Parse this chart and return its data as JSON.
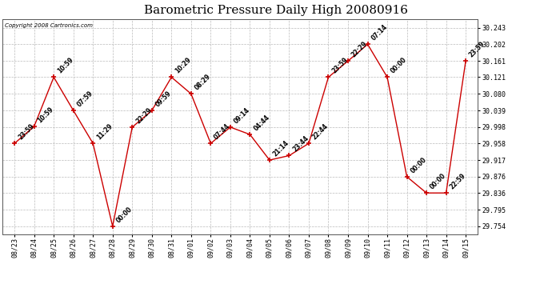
{
  "title": "Barometric Pressure Daily High 20080916",
  "copyright": "Copyright 2008 Cartronics.com",
  "x_labels": [
    "08/23",
    "08/24",
    "08/25",
    "08/26",
    "08/27",
    "08/28",
    "08/29",
    "08/30",
    "08/31",
    "09/01",
    "09/02",
    "09/03",
    "09/04",
    "09/05",
    "09/06",
    "09/07",
    "09/08",
    "09/09",
    "09/10",
    "09/11",
    "09/12",
    "09/13",
    "09/14",
    "09/15"
  ],
  "y_values": [
    29.958,
    30.0,
    30.121,
    30.039,
    29.958,
    29.754,
    29.998,
    30.039,
    30.121,
    30.08,
    29.958,
    29.998,
    29.98,
    29.917,
    29.928,
    29.958,
    30.121,
    30.161,
    30.202,
    30.121,
    29.876,
    29.836,
    29.836,
    30.161
  ],
  "point_labels": [
    "23:59",
    "10:59",
    "10:59",
    "07:59",
    "11:29",
    "00:00",
    "22:29",
    "09:59",
    "10:29",
    "08:29",
    "07:44",
    "09:14",
    "04:44",
    "21:14",
    "23:44",
    "22:44",
    "23:59",
    "22:29",
    "07:14",
    "00:00",
    "00:00",
    "00:00",
    "22:59",
    "23:59"
  ],
  "y_ticks": [
    29.754,
    29.795,
    29.836,
    29.876,
    29.917,
    29.958,
    29.998,
    30.039,
    30.08,
    30.121,
    30.161,
    30.202,
    30.243
  ],
  "line_color": "#cc0000",
  "marker_color": "#cc0000",
  "background_color": "#ffffff",
  "grid_color": "#bbbbbb",
  "title_fontsize": 11,
  "ylim": [
    29.735,
    30.263
  ],
  "anno_fontsize": 5.5,
  "tick_fontsize": 6.0
}
